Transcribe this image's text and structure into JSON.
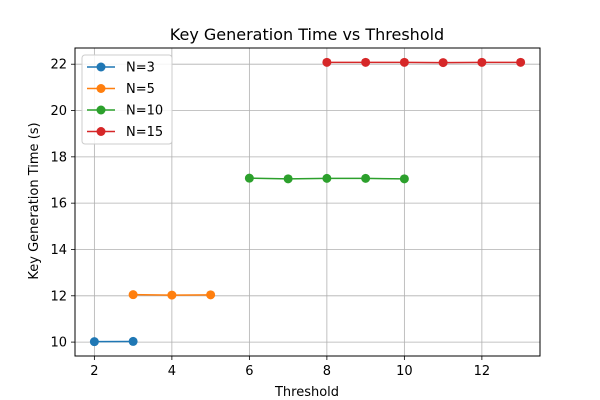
{
  "chart_data": {
    "type": "line",
    "title": "Key Generation Time vs Threshold",
    "xlabel": "Threshold",
    "ylabel": "Key Generation Time (s)",
    "xlim": [
      1.5,
      13.5
    ],
    "ylim": [
      9.4,
      22.7
    ],
    "xticks": [
      2,
      4,
      6,
      8,
      10,
      12
    ],
    "yticks": [
      10,
      12,
      14,
      16,
      18,
      20,
      22
    ],
    "grid": true,
    "legend_position": "top-left",
    "series": [
      {
        "name": "N=3",
        "color": "#1f77b4",
        "x": [
          2,
          3
        ],
        "y": [
          10.02,
          10.03
        ]
      },
      {
        "name": "N=5",
        "color": "#ff7f0e",
        "x": [
          3,
          4,
          5
        ],
        "y": [
          12.05,
          12.03,
          12.04
        ]
      },
      {
        "name": "N=10",
        "color": "#2ca02c",
        "x": [
          6,
          7,
          8,
          9,
          10
        ],
        "y": [
          17.08,
          17.05,
          17.07,
          17.07,
          17.05
        ]
      },
      {
        "name": "N=15",
        "color": "#d62728",
        "x": [
          8,
          9,
          10,
          11,
          12,
          13
        ],
        "y": [
          22.08,
          22.08,
          22.08,
          22.07,
          22.08,
          22.08
        ]
      }
    ]
  }
}
